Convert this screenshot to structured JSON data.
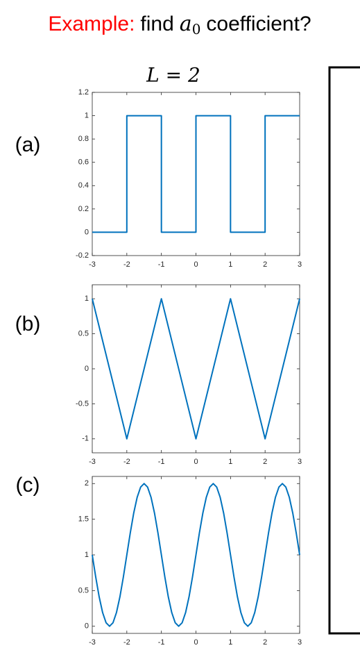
{
  "heading": {
    "prefix": "Example:",
    "word": "find",
    "symbol": "a",
    "subscript": "0",
    "suffix": "coefficient?"
  },
  "caption": "L = 2",
  "chart_data": [
    {
      "type": "line",
      "label": "(a)",
      "color": "#0072bd",
      "x": [
        -3,
        -2,
        -2,
        -1,
        -1,
        0,
        0,
        1,
        1,
        2,
        2,
        3
      ],
      "values": [
        0,
        0,
        1,
        1,
        0,
        0,
        1,
        1,
        0,
        0,
        1,
        1
      ],
      "xlim": [
        -3,
        3
      ],
      "xticks": [
        -3,
        -2,
        -1,
        0,
        1,
        2,
        3
      ],
      "ylim": [
        -0.2,
        1.2
      ],
      "yticks": [
        -0.2,
        0,
        0.2,
        0.4,
        0.6,
        0.8,
        1,
        1.2
      ]
    },
    {
      "type": "line",
      "label": "(b)",
      "color": "#0072bd",
      "x": [
        -3,
        -2,
        -1,
        0,
        1,
        2,
        3
      ],
      "values": [
        1,
        -1,
        1,
        -1,
        1,
        -1,
        1
      ],
      "xlim": [
        -3,
        3
      ],
      "xticks": [
        -3,
        -2,
        -1,
        0,
        1,
        2,
        3
      ],
      "ylim": [
        -1.2,
        1.2
      ],
      "yticks": [
        -1,
        -0.5,
        0,
        0.5,
        1
      ]
    },
    {
      "type": "line",
      "label": "(c)",
      "color": "#0072bd",
      "x": [
        -3,
        -2.9,
        -2.8,
        -2.7,
        -2.6,
        -2.5,
        -2.4,
        -2.3,
        -2.2,
        -2.1,
        -2,
        -1.9,
        -1.8,
        -1.7,
        -1.6,
        -1.5,
        -1.4,
        -1.3,
        -1.2,
        -1.1,
        -1,
        -0.9,
        -0.8,
        -0.7,
        -0.6,
        -0.5,
        -0.4,
        -0.3,
        -0.2,
        -0.1,
        0,
        0.1,
        0.2,
        0.3,
        0.4,
        0.5,
        0.6,
        0.7,
        0.8,
        0.9,
        1,
        1.1,
        1.2,
        1.3,
        1.4,
        1.5,
        1.6,
        1.7,
        1.8,
        1.9,
        2,
        2.1,
        2.2,
        2.3,
        2.4,
        2.5,
        2.6,
        2.7,
        2.8,
        2.9,
        3
      ],
      "values": [
        1,
        0.691,
        0.412,
        0.191,
        0.049,
        0,
        0.049,
        0.191,
        0.412,
        0.691,
        1,
        1.309,
        1.588,
        1.809,
        1.951,
        2,
        1.951,
        1.809,
        1.588,
        1.309,
        1,
        0.691,
        0.412,
        0.191,
        0.049,
        0,
        0.049,
        0.191,
        0.412,
        0.691,
        1,
        1.309,
        1.588,
        1.809,
        1.951,
        2,
        1.951,
        1.809,
        1.588,
        1.309,
        1,
        0.691,
        0.412,
        0.191,
        0.049,
        0,
        0.049,
        0.191,
        0.412,
        0.691,
        1,
        1.309,
        1.588,
        1.809,
        1.951,
        2,
        1.951,
        1.809,
        1.588,
        1.309,
        1
      ],
      "xlim": [
        -3,
        3
      ],
      "xticks": [
        -3,
        -2,
        -1,
        0,
        1,
        2,
        3
      ],
      "ylim": [
        -0.1,
        2.1
      ],
      "yticks": [
        0,
        0.5,
        1,
        1.5,
        2
      ]
    }
  ]
}
